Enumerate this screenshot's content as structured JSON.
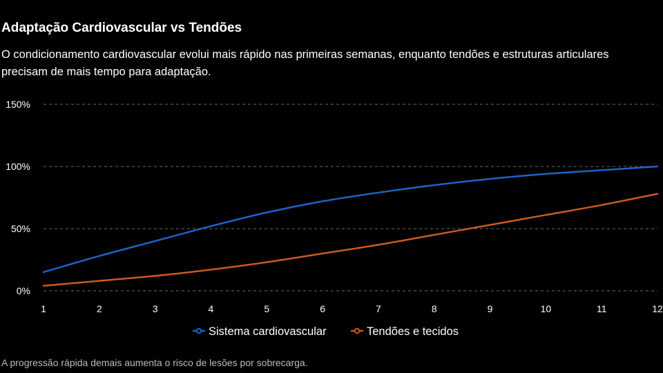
{
  "header": {
    "title": "Adaptação Cardiovascular vs Tendões",
    "subtitle": "O condicionamento cardiovascular evolui mais rápido nas primeiras semanas, enquanto tendões e estruturas articulares precisam de mais tempo para adaptação."
  },
  "footnote": "A progressão rápida demais aumenta o risco de lesões por sobrecarga.",
  "chart_data": {
    "type": "line",
    "title": "Adaptação Cardiovascular vs Tendões",
    "xlabel": "",
    "ylabel": "",
    "x": [
      1,
      2,
      3,
      4,
      5,
      6,
      7,
      8,
      9,
      10,
      11,
      12
    ],
    "xlim": [
      1,
      12
    ],
    "ylim": [
      0,
      150
    ],
    "yticks": [
      0,
      50,
      100,
      150
    ],
    "ytick_labels": [
      "0%",
      "50%",
      "100%",
      "150%"
    ],
    "xtick_labels": [
      "1",
      "2",
      "3",
      "4",
      "5",
      "6",
      "7",
      "8",
      "9",
      "10",
      "11",
      "12"
    ],
    "grid": "horizontal dashed",
    "legend_position": "bottom-center",
    "series": [
      {
        "name": "Sistema cardiovascular",
        "color": "#1e63c8",
        "values": [
          15,
          28,
          40,
          52,
          63,
          72,
          79,
          85,
          90,
          94,
          97,
          100
        ]
      },
      {
        "name": "Tendões e tecidos",
        "color": "#cc5a1e",
        "values": [
          4,
          8,
          12,
          17,
          23,
          30,
          37,
          45,
          53,
          61,
          69,
          78
        ]
      }
    ]
  }
}
